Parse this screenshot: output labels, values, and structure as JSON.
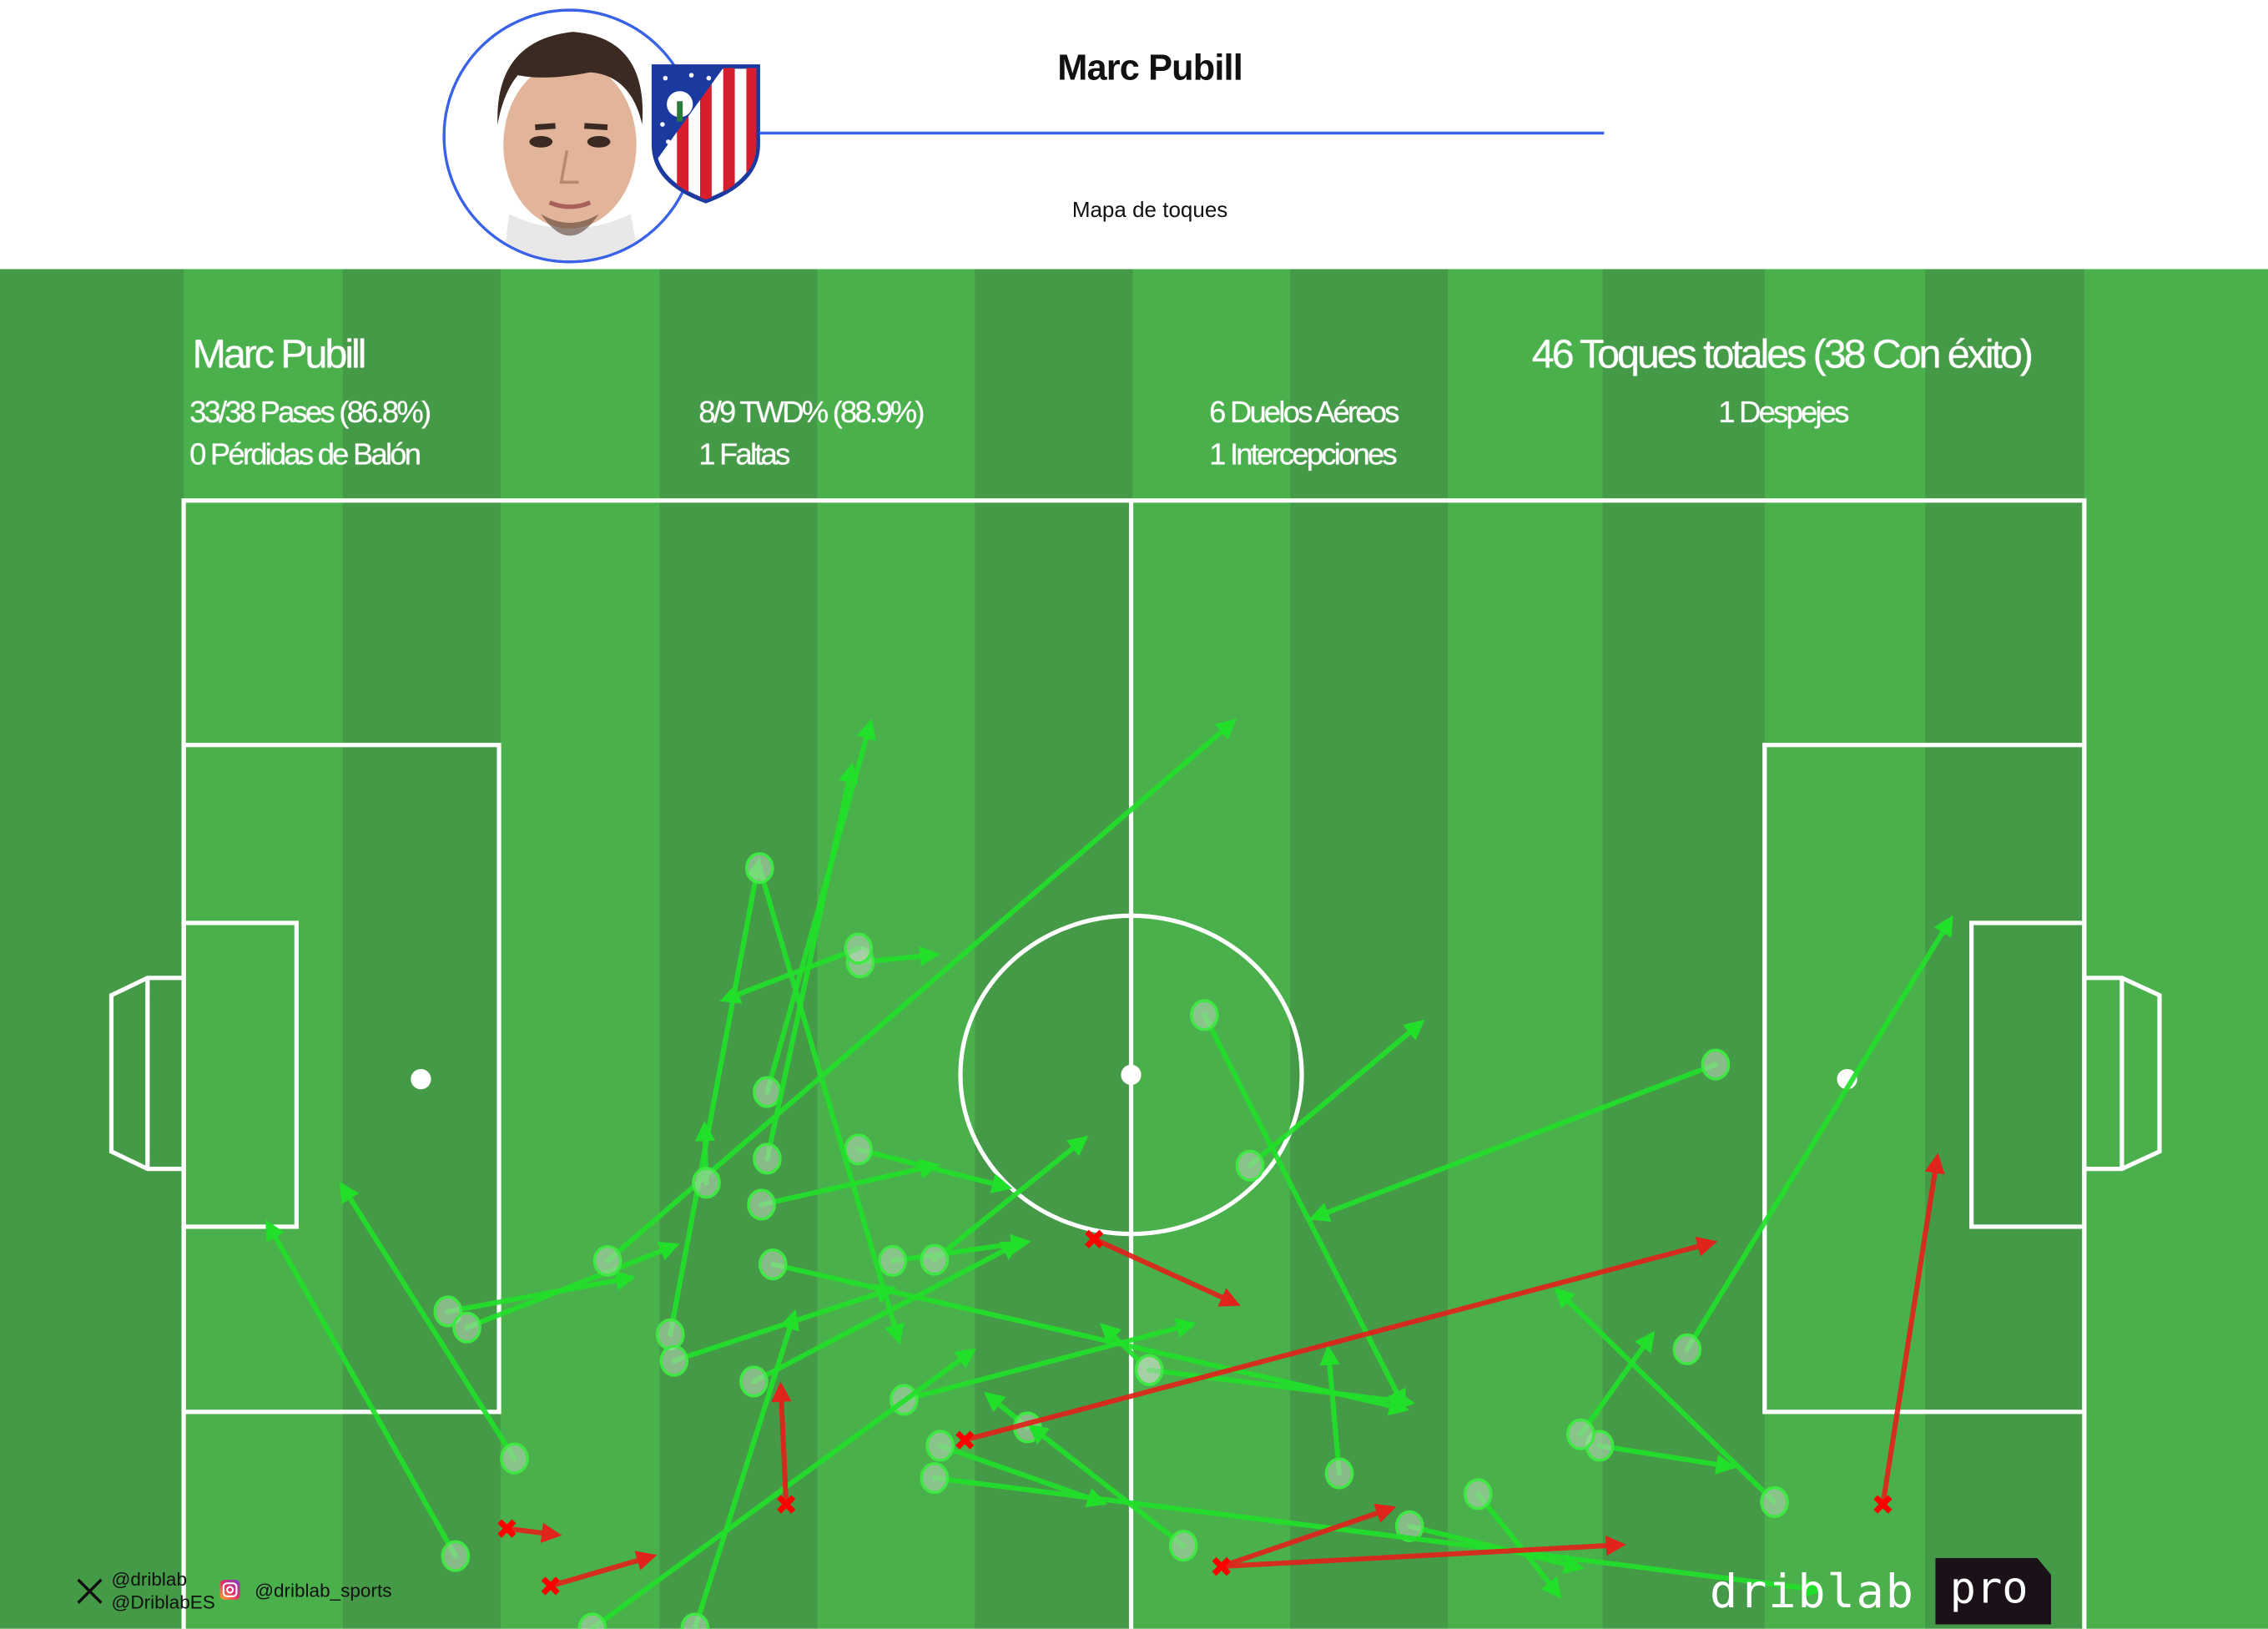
{
  "header": {
    "title": "Marc Pubill",
    "subtitle": "Mapa de toques",
    "accent_color": "#3a62e8"
  },
  "stats": {
    "player_name": "Marc Pubill",
    "total_touches": "46 Toques totales (38 Con éxito)",
    "passes": "33/38 Pases (86.8%)",
    "ball_losses": "0 Pérdidas de Balón",
    "twd": "8/9 TWD% (88.9%)",
    "fouls": "1 Faltas",
    "aerial_duels": "6 Duelos Aéreos",
    "interceptions": "1 Intercepciones",
    "clearances": "1 Despejes"
  },
  "footer": {
    "x_handle_1": "@driblab",
    "x_handle_2": "@DriblabES",
    "instagram_handle": "@driblab_sports",
    "brand_logo_text": "driblab",
    "brand_badge_text": "pro"
  },
  "chart_data": {
    "type": "scatter",
    "subtype": "pitch-touch-map",
    "pitch_units": "0-100 (x: own goal line to opponent goal line, y: top touchline to bottom touchline)",
    "xlim": [
      0,
      100
    ],
    "ylim": [
      0,
      100
    ],
    "colors": {
      "successful": "#22e02a",
      "unsuccessful": "#e0231b",
      "pitch_light": "#4ab04c",
      "pitch_dark": "#459a47"
    },
    "successful": [
      {
        "from": [
          14.3,
          91.9
        ],
        "to": [
          4.3,
          62.6
        ]
      },
      {
        "from": [
          17.4,
          83.4
        ],
        "to": [
          8.2,
          59.3
        ]
      },
      {
        "from": [
          13.9,
          70.6
        ],
        "to": [
          23.8,
          67.6
        ]
      },
      {
        "from": [
          14.9,
          72.0
        ],
        "to": [
          26.1,
          64.7
        ]
      },
      {
        "from": [
          22.3,
          66.2
        ],
        "to": [
          55.4,
          19.0
        ]
      },
      {
        "from": [
          25.6,
          72.6
        ],
        "to": [
          30.3,
          31.1
        ]
      },
      {
        "from": [
          30.7,
          51.5
        ],
        "to": [
          36.2,
          19.0
        ]
      },
      {
        "from": [
          30.7,
          57.3
        ],
        "to": [
          35.2,
          22.8
        ]
      },
      {
        "from": [
          35.6,
          40.2
        ],
        "to": [
          39.8,
          39.5
        ]
      },
      {
        "from": [
          35.5,
          39.0
        ],
        "to": [
          28.2,
          43.6
        ]
      },
      {
        "from": [
          27.5,
          59.4
        ],
        "to": [
          27.4,
          54.0
        ]
      },
      {
        "from": [
          35.5,
          56.5
        ],
        "to": [
          43.6,
          59.9
        ]
      },
      {
        "from": [
          30.4,
          61.3
        ],
        "to": [
          39.8,
          57.8
        ]
      },
      {
        "from": [
          31.0,
          66.5
        ],
        "to": [
          64.5,
          79.2
        ]
      },
      {
        "from": [
          37.3,
          66.2
        ],
        "to": [
          44.6,
          64.5
        ]
      },
      {
        "from": [
          39.5,
          66.1
        ],
        "to": [
          47.6,
          55.3
        ]
      },
      {
        "from": [
          25.8,
          74.9
        ],
        "to": [
          37.5,
          68.5
        ]
      },
      {
        "from": [
          30.0,
          76.7
        ],
        "to": [
          44.1,
          64.5
        ]
      },
      {
        "from": [
          26.9,
          98.2
        ],
        "to": [
          32.2,
          70.4
        ]
      },
      {
        "from": [
          37.9,
          78.3
        ],
        "to": [
          53.3,
          71.6
        ]
      },
      {
        "from": [
          21.5,
          98.2
        ],
        "to": [
          41.7,
          73.8
        ]
      },
      {
        "from": [
          30.3,
          32.0
        ],
        "to": [
          37.7,
          73.5
        ]
      },
      {
        "from": [
          44.4,
          80.7
        ],
        "to": [
          42.1,
          77.6
        ]
      },
      {
        "from": [
          52.6,
          91.0
        ],
        "to": [
          44.4,
          80.4
        ]
      },
      {
        "from": [
          39.8,
          82.3
        ],
        "to": [
          48.6,
          87.4
        ]
      },
      {
        "from": [
          53.7,
          44.8
        ],
        "to": [
          64.3,
          79.2
        ]
      },
      {
        "from": [
          56.1,
          57.9
        ],
        "to": [
          65.3,
          45.2
        ]
      },
      {
        "from": [
          50.8,
          75.7
        ],
        "to": [
          48.2,
          71.6
        ]
      },
      {
        "from": [
          80.6,
          49.1
        ],
        "to": [
          59.2,
          62.6
        ]
      },
      {
        "from": [
          79.1,
          73.9
        ],
        "to": [
          93.1,
          36.1
        ]
      },
      {
        "from": [
          74.5,
          82.3
        ],
        "to": [
          81.7,
          84.2
        ]
      },
      {
        "from": [
          73.5,
          81.3
        ],
        "to": [
          77.4,
          72.3
        ]
      },
      {
        "from": [
          83.7,
          87.2
        ],
        "to": [
          72.1,
          68.5
        ]
      },
      {
        "from": [
          60.8,
          84.7
        ],
        "to": [
          60.2,
          73.5
        ]
      },
      {
        "from": [
          50.8,
          75.7
        ],
        "to": [
          64.8,
          78.6
        ]
      },
      {
        "from": [
          64.5,
          89.3
        ],
        "to": [
          73.7,
          93.0
        ]
      },
      {
        "from": [
          68.1,
          86.5
        ],
        "to": [
          72.5,
          95.6
        ]
      },
      {
        "from": [
          39.5,
          85.1
        ],
        "to": [
          86.3,
          94.9
        ]
      }
    ],
    "unsuccessful": [
      {
        "from": [
          47.9,
          64.3
        ],
        "to": [
          55.6,
          70.1
        ]
      },
      {
        "from": [
          41.1,
          81.8
        ],
        "to": [
          80.7,
          64.5
        ]
      },
      {
        "from": [
          31.7,
          87.4
        ],
        "to": [
          31.4,
          76.7
        ]
      },
      {
        "from": [
          17.0,
          89.5
        ],
        "to": [
          19.9,
          90.1
        ]
      },
      {
        "from": [
          19.3,
          94.5
        ],
        "to": [
          24.9,
          91.8
        ]
      },
      {
        "from": [
          54.6,
          92.8
        ],
        "to": [
          75.9,
          90.9
        ]
      },
      {
        "from": [
          54.6,
          92.8
        ],
        "to": [
          63.8,
          87.6
        ]
      },
      {
        "from": [
          89.4,
          87.4
        ],
        "to": [
          92.3,
          56.8
        ]
      }
    ]
  }
}
